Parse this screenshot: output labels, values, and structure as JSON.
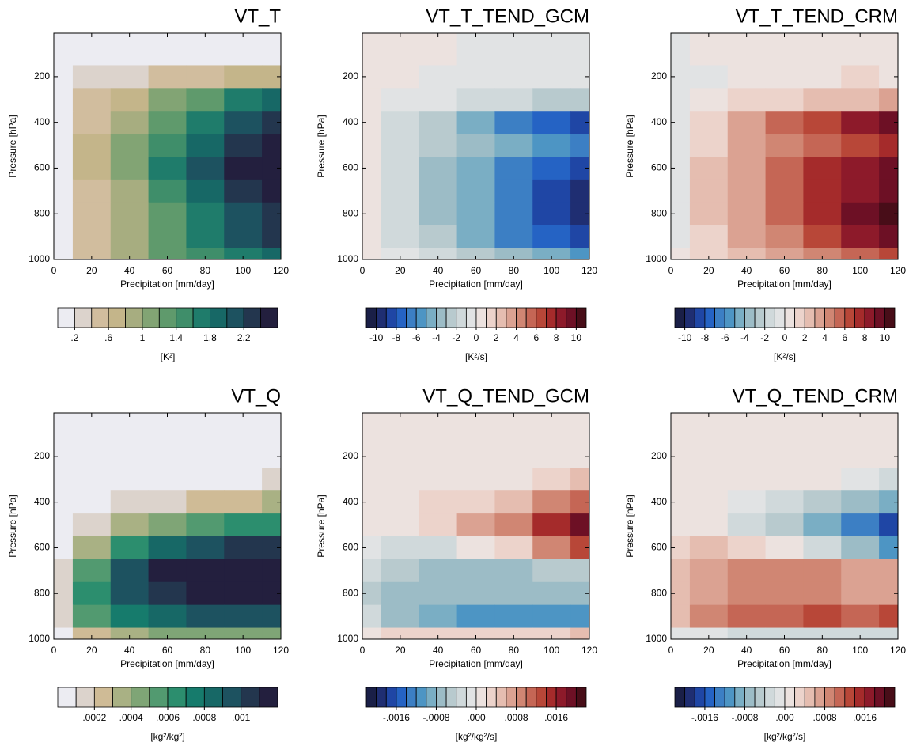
{
  "chart_data": [
    {
      "type": "contour",
      "title": "VT_T",
      "xlabel": "Precipitation [mm/day]",
      "ylabel": "Pressure [hPa]",
      "x": [
        0,
        20,
        40,
        60,
        80,
        100,
        120
      ],
      "y": [
        100,
        200,
        300,
        400,
        500,
        600,
        700,
        800,
        900,
        1000
      ],
      "z": [
        [
          0.05,
          0.05,
          0.05,
          0.05,
          0.05,
          0.05,
          0.05
        ],
        [
          0.1,
          0.2,
          0.3,
          0.4,
          0.5,
          0.6,
          0.7
        ],
        [
          0.1,
          0.4,
          0.7,
          1.0,
          1.3,
          1.6,
          1.8
        ],
        [
          0.1,
          0.5,
          0.9,
          1.3,
          1.7,
          2.0,
          2.3
        ],
        [
          0.15,
          0.6,
          1.0,
          1.5,
          1.9,
          2.3,
          2.5
        ],
        [
          0.15,
          0.6,
          1.1,
          1.6,
          2.0,
          2.4,
          2.6
        ],
        [
          0.1,
          0.5,
          0.9,
          1.4,
          1.8,
          2.2,
          2.4
        ],
        [
          0.1,
          0.4,
          0.8,
          1.2,
          1.6,
          2.0,
          2.2
        ],
        [
          0.15,
          0.5,
          0.9,
          1.3,
          1.7,
          2.0,
          2.2
        ],
        [
          0.15,
          0.5,
          0.9,
          1.2,
          1.5,
          1.7,
          1.9
        ]
      ],
      "xlim": [
        0,
        120
      ],
      "ylim": [
        10,
        1000
      ],
      "y_reversed": true,
      "xticks": [
        0,
        20,
        40,
        60,
        80,
        100,
        120
      ],
      "yticks": [
        200,
        400,
        600,
        800,
        1000
      ],
      "levels": [
        0.2,
        0.4,
        0.6,
        0.8,
        1.0,
        1.2,
        1.4,
        1.6,
        1.8,
        2.0,
        2.2,
        2.4
      ],
      "colors": [
        "#ececf2",
        "#dcd3cc",
        "#d1bd9e",
        "#c4b58a",
        "#a7ad80",
        "#82a474",
        "#5f9a6c",
        "#3f8e6a",
        "#1f7c6b",
        "#176866",
        "#1d5260",
        "#23364e",
        "#231f3e"
      ],
      "cbar_ticks": [
        {
          "value": 0.2,
          "label": ".2"
        },
        {
          "value": 0.6,
          "label": ".6"
        },
        1,
        1.4,
        1.8,
        2.2
      ],
      "cbar_label": "[K²]"
    },
    {
      "type": "contour",
      "title": "VT_T_TEND_GCM",
      "xlabel": "Precipitation [mm/day]",
      "ylabel": "Pressure [hPa]",
      "x": [
        0,
        20,
        40,
        60,
        80,
        100,
        120
      ],
      "y": [
        100,
        200,
        300,
        400,
        500,
        600,
        700,
        800,
        900,
        1000
      ],
      "z": [
        [
          0.3,
          0.3,
          0.2,
          -0.3,
          -0.3,
          -0.5,
          -0.3
        ],
        [
          0.3,
          0.2,
          -0.3,
          -0.5,
          -0.8,
          -1,
          -0.8
        ],
        [
          0.2,
          -0.5,
          -1,
          -1.5,
          -2,
          -2.5,
          -3
        ],
        [
          0.2,
          -1.5,
          -3,
          -5,
          -6.5,
          -8,
          -9
        ],
        [
          0.2,
          -1.5,
          -3,
          -4,
          -5,
          -6,
          -7
        ],
        [
          0.3,
          -2,
          -3.5,
          -5,
          -7,
          -8,
          -9
        ],
        [
          0.3,
          -2,
          -3.5,
          -5,
          -7,
          -8.5,
          -9.5
        ],
        [
          0.3,
          -2,
          -3.5,
          -5,
          -7,
          -9,
          -10
        ],
        [
          0.3,
          -1.5,
          -3,
          -4.5,
          -6.5,
          -8,
          -9
        ],
        [
          0.5,
          -1,
          -2,
          -3,
          -4,
          -5,
          -6
        ]
      ],
      "xlim": [
        0,
        120
      ],
      "ylim": [
        10,
        1000
      ],
      "y_reversed": true,
      "xticks": [
        0,
        20,
        40,
        60,
        80,
        100,
        120
      ],
      "yticks": [
        200,
        400,
        600,
        800,
        1000
      ],
      "levels": [
        -10,
        -9,
        -8,
        -7,
        -6,
        -5,
        -4,
        -3,
        -2,
        -1,
        0,
        1,
        2,
        3,
        4,
        5,
        6,
        7,
        8,
        9,
        10
      ],
      "colors": [
        "#1a1f47",
        "#1f2e72",
        "#1f46a5",
        "#2563c4",
        "#3c7fc4",
        "#4d95c4",
        "#7aaec4",
        "#9cbcc6",
        "#b8cace",
        "#d0d9db",
        "#e1e3e4",
        "#ece2df",
        "#ecd3cb",
        "#e5bdb0",
        "#dba292",
        "#d08673",
        "#c56655",
        "#b84738",
        "#a52b2b",
        "#8d1a2a",
        "#6d1025",
        "#480d18"
      ],
      "cbar_ticks": [
        -10,
        -8,
        -6,
        -4,
        -2,
        0,
        2,
        4,
        6,
        8,
        10
      ],
      "cbar_label": "[K²/s]"
    },
    {
      "type": "contour",
      "title": "VT_T_TEND_CRM",
      "xlabel": "Precipitation [mm/day]",
      "ylabel": "Pressure [hPa]",
      "x": [
        0,
        20,
        40,
        60,
        80,
        100,
        120
      ],
      "y": [
        100,
        200,
        300,
        400,
        500,
        600,
        700,
        800,
        900,
        1000
      ],
      "z": [
        [
          -0.3,
          0.3,
          0.3,
          0.3,
          0.3,
          0.5,
          0.3
        ],
        [
          -0.3,
          -0.2,
          0.3,
          0.5,
          0.8,
          1,
          0.8
        ],
        [
          -0.2,
          0.5,
          1,
          1.5,
          2,
          2.5,
          3
        ],
        [
          -0.2,
          1.5,
          3,
          5,
          6.5,
          8,
          9
        ],
        [
          -0.2,
          1.5,
          3,
          4,
          5,
          6,
          7
        ],
        [
          -0.3,
          2,
          3.5,
          5,
          7,
          8,
          9
        ],
        [
          -0.3,
          2,
          3.5,
          5,
          7,
          8.5,
          9.5
        ],
        [
          -0.3,
          2,
          3.5,
          5,
          7,
          9,
          10
        ],
        [
          -0.3,
          1.5,
          3,
          4.5,
          6.5,
          8,
          9
        ],
        [
          0.5,
          1,
          2,
          3,
          4,
          5,
          6
        ]
      ],
      "xlim": [
        0,
        120
      ],
      "ylim": [
        10,
        1000
      ],
      "y_reversed": true,
      "xticks": [
        0,
        20,
        40,
        60,
        80,
        100,
        120
      ],
      "yticks": [
        200,
        400,
        600,
        800,
        1000
      ],
      "levels": [
        -10,
        -9,
        -8,
        -7,
        -6,
        -5,
        -4,
        -3,
        -2,
        -1,
        0,
        1,
        2,
        3,
        4,
        5,
        6,
        7,
        8,
        9,
        10
      ],
      "colors": [
        "#1a1f47",
        "#1f2e72",
        "#1f46a5",
        "#2563c4",
        "#3c7fc4",
        "#4d95c4",
        "#7aaec4",
        "#9cbcc6",
        "#b8cace",
        "#d0d9db",
        "#e1e3e4",
        "#ece2df",
        "#ecd3cb",
        "#e5bdb0",
        "#dba292",
        "#d08673",
        "#c56655",
        "#b84738",
        "#a52b2b",
        "#8d1a2a",
        "#6d1025",
        "#480d18"
      ],
      "cbar_ticks": [
        -10,
        -8,
        -6,
        -4,
        -2,
        0,
        2,
        4,
        6,
        8,
        10
      ],
      "cbar_label": "[K²/s]"
    },
    {
      "type": "contour",
      "title": "VT_Q",
      "xlabel": "Precipitation [mm/day]",
      "ylabel": "Pressure [hPa]",
      "x": [
        0,
        20,
        40,
        60,
        80,
        100,
        120
      ],
      "y": [
        100,
        200,
        300,
        400,
        500,
        600,
        700,
        800,
        900,
        1000
      ],
      "z": [
        [
          0,
          0,
          0,
          0,
          0,
          0,
          0
        ],
        [
          0,
          0,
          0,
          0,
          0,
          0,
          0
        ],
        [
          0,
          0,
          2e-05,
          4e-05,
          6e-05,
          8e-05,
          0.0001
        ],
        [
          0,
          5e-05,
          0.0001,
          0.00015,
          0.0002,
          0.00025,
          0.0003
        ],
        [
          0,
          0.0001,
          0.0003,
          0.0004,
          0.0005,
          0.0006,
          0.0006
        ],
        [
          5e-05,
          0.0003,
          0.0006,
          0.0008,
          0.0009,
          0.001,
          0.001
        ],
        [
          0.0001,
          0.0005,
          0.0009,
          0.0011,
          0.0012,
          0.0012,
          0.0012
        ],
        [
          0.0001,
          0.0006,
          0.0009,
          0.001,
          0.0011,
          0.0011,
          0.0011
        ],
        [
          0.0001,
          0.0005,
          0.0007,
          0.0008,
          0.0009,
          0.0009,
          0.0009
        ],
        [
          5e-05,
          0.0002,
          0.0003,
          0.0004,
          0.0004,
          0.0004,
          0.0004
        ]
      ],
      "xlim": [
        0,
        120
      ],
      "ylim": [
        10,
        1000
      ],
      "y_reversed": true,
      "xticks": [
        0,
        20,
        40,
        60,
        80,
        100,
        120
      ],
      "yticks": [
        200,
        400,
        600,
        800,
        1000
      ],
      "levels": [
        0.0001,
        0.0002,
        0.0003,
        0.0004,
        0.0005,
        0.0006,
        0.0007,
        0.0008,
        0.0009,
        0.001,
        0.0011
      ],
      "colors": [
        "#ececf2",
        "#dcd3cc",
        "#cfbb96",
        "#a9b184",
        "#7fa576",
        "#529a70",
        "#2c8e6e",
        "#167b6c",
        "#176866",
        "#1d5260",
        "#23364e",
        "#231f3e"
      ],
      "cbar_ticks": [
        {
          "value": 0.0002,
          "label": ".0002"
        },
        {
          "value": 0.0004,
          "label": ".0004"
        },
        {
          "value": 0.0006,
          "label": ".0006"
        },
        {
          "value": 0.0008,
          "label": ".0008"
        },
        {
          "value": 0.001,
          "label": ".001"
        }
      ],
      "cbar_label": "[kg²/kg²]"
    },
    {
      "type": "contour",
      "title": "VT_Q_TEND_GCM",
      "xlabel": "Precipitation [mm/day]",
      "ylabel": "Pressure [hPa]",
      "x": [
        0,
        20,
        40,
        60,
        80,
        100,
        120
      ],
      "y": [
        100,
        200,
        300,
        400,
        500,
        600,
        700,
        800,
        900,
        1000
      ],
      "z": [
        [
          0.0001,
          0.0001,
          0.0001,
          0.0001,
          0.0001,
          0.0001,
          0.0001
        ],
        [
          0.0001,
          0.0001,
          0.0001,
          0,
          0,
          0,
          0
        ],
        [
          0.0001,
          0.0001,
          0.0001,
          0.0001,
          0.0001,
          0.0002,
          0.0004
        ],
        [
          0.0001,
          0,
          0.0002,
          0.0003,
          0.0005,
          0.0008,
          0.001
        ],
        [
          0,
          0,
          0.0003,
          0.0006,
          0.0009,
          0.0014,
          0.0018
        ],
        [
          -0.0001,
          -0.0003,
          -0.0003,
          0,
          0.0003,
          0.0008,
          0.0012
        ],
        [
          -0.0004,
          -0.0005,
          -0.0007,
          -0.0007,
          -0.0007,
          -0.0006,
          -0.0005
        ],
        [
          -0.0005,
          -0.0007,
          -0.0008,
          -0.0008,
          -0.0008,
          -0.0007,
          -0.0007
        ],
        [
          -0.0004,
          -0.0008,
          -0.001,
          -0.0011,
          -0.0012,
          -0.0011,
          -0.0012
        ],
        [
          0.0001,
          0.0002,
          0.0003,
          0.0003,
          0.0003,
          0.0003,
          0.0004
        ]
      ],
      "xlim": [
        0,
        120
      ],
      "ylim": [
        10,
        1000
      ],
      "y_reversed": true,
      "xticks": [
        0,
        20,
        40,
        60,
        80,
        100,
        120
      ],
      "yticks": [
        200,
        400,
        600,
        800,
        1000
      ],
      "levels": [
        -0.002,
        -0.0018,
        -0.0016,
        -0.0014,
        -0.0012,
        -0.001,
        -0.0008,
        -0.0006,
        -0.0004,
        -0.0002,
        0,
        0.0002,
        0.0004,
        0.0006,
        0.0008,
        0.001,
        0.0012,
        0.0014,
        0.0016,
        0.0018,
        0.002
      ],
      "colors": [
        "#1a1f47",
        "#1f2e72",
        "#1f46a5",
        "#2563c4",
        "#3c7fc4",
        "#4d95c4",
        "#7aaec4",
        "#9cbcc6",
        "#b8cace",
        "#d0d9db",
        "#e1e3e4",
        "#ece2df",
        "#ecd3cb",
        "#e5bdb0",
        "#dba292",
        "#d08673",
        "#c56655",
        "#b84738",
        "#a52b2b",
        "#8d1a2a",
        "#6d1025",
        "#480d18"
      ],
      "cbar_ticks": [
        {
          "value": -0.0016,
          "label": "-.0016"
        },
        {
          "value": -0.0008,
          "label": "-.0008"
        },
        {
          "value": 0,
          "label": ".000"
        },
        {
          "value": 0.0008,
          "label": ".0008"
        },
        {
          "value": 0.0016,
          "label": ".0016"
        }
      ],
      "cbar_label": "[kg²/kg²/s]"
    },
    {
      "type": "contour",
      "title": "VT_Q_TEND_CRM",
      "xlabel": "Precipitation [mm/day]",
      "ylabel": "Pressure [hPa]",
      "x": [
        0,
        20,
        40,
        60,
        80,
        100,
        120
      ],
      "y": [
        100,
        200,
        300,
        400,
        500,
        600,
        700,
        800,
        900,
        1000
      ],
      "z": [
        [
          0,
          0,
          0,
          0,
          0,
          0,
          0
        ],
        [
          0,
          0,
          0,
          0,
          0,
          0,
          0
        ],
        [
          0,
          0,
          0,
          0,
          0,
          -0.0001,
          -0.0003
        ],
        [
          0,
          0,
          -0.0002,
          -0.0003,
          -0.0005,
          -0.0007,
          -0.0009
        ],
        [
          0.0001,
          0.0001,
          -0.0003,
          -0.0006,
          -0.0009,
          -0.0014,
          -0.0018
        ],
        [
          0.0003,
          0.0004,
          0.0003,
          0,
          -0.0003,
          -0.0008,
          -0.0012
        ],
        [
          0.0004,
          0.0006,
          0.0008,
          0.0008,
          0.0008,
          0.0007,
          0.0006
        ],
        [
          0.0004,
          0.0007,
          0.0008,
          0.0008,
          0.0008,
          0.0007,
          0.0007
        ],
        [
          0.0004,
          0.0008,
          0.001,
          0.0011,
          0.0012,
          0.0011,
          0.0012
        ],
        [
          -0.0002,
          -0.0002,
          -0.0003,
          -0.0003,
          -0.0003,
          -0.0003,
          -0.0004
        ]
      ],
      "xlim": [
        0,
        120
      ],
      "ylim": [
        10,
        1000
      ],
      "y_reversed": true,
      "xticks": [
        0,
        20,
        40,
        60,
        80,
        100,
        120
      ],
      "yticks": [
        200,
        400,
        600,
        800,
        1000
      ],
      "levels": [
        -0.002,
        -0.0018,
        -0.0016,
        -0.0014,
        -0.0012,
        -0.001,
        -0.0008,
        -0.0006,
        -0.0004,
        -0.0002,
        0,
        0.0002,
        0.0004,
        0.0006,
        0.0008,
        0.001,
        0.0012,
        0.0014,
        0.0016,
        0.0018,
        0.002
      ],
      "colors": [
        "#1a1f47",
        "#1f2e72",
        "#1f46a5",
        "#2563c4",
        "#3c7fc4",
        "#4d95c4",
        "#7aaec4",
        "#9cbcc6",
        "#b8cace",
        "#d0d9db",
        "#e1e3e4",
        "#ece2df",
        "#ecd3cb",
        "#e5bdb0",
        "#dba292",
        "#d08673",
        "#c56655",
        "#b84738",
        "#a52b2b",
        "#8d1a2a",
        "#6d1025",
        "#480d18"
      ],
      "cbar_ticks": [
        {
          "value": -0.0016,
          "label": "-.0016"
        },
        {
          "value": -0.0008,
          "label": "-.0008"
        },
        {
          "value": 0,
          "label": ".000"
        },
        {
          "value": 0.0008,
          "label": ".0008"
        },
        {
          "value": 0.0016,
          "label": ".0016"
        }
      ],
      "cbar_label": "[kg²/kg²/s]"
    }
  ]
}
